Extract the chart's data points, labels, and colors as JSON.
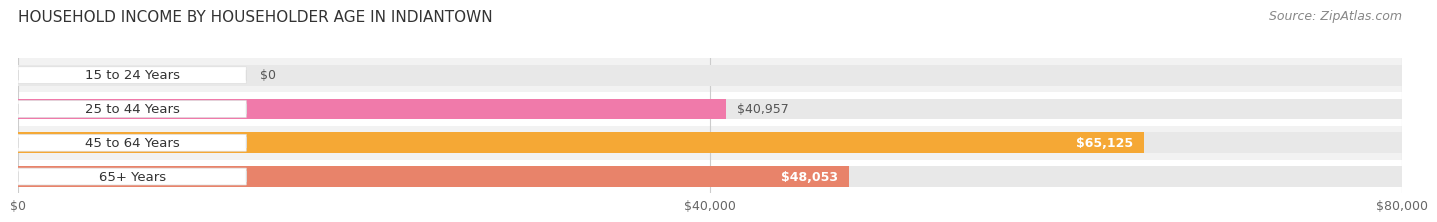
{
  "title": "HOUSEHOLD INCOME BY HOUSEHOLDER AGE IN INDIANTOWN",
  "source": "Source: ZipAtlas.com",
  "categories": [
    "15 to 24 Years",
    "25 to 44 Years",
    "45 to 64 Years",
    "65+ Years"
  ],
  "values": [
    0,
    40957,
    65125,
    48053
  ],
  "bar_colors": [
    "#b0b0e0",
    "#f07aaa",
    "#f5a835",
    "#e8836a"
  ],
  "bar_bg_color": "#e8e8e8",
  "xlim": [
    0,
    80000
  ],
  "xticks": [
    0,
    40000,
    80000
  ],
  "xticklabels": [
    "$0",
    "$40,000",
    "$80,000"
  ],
  "value_labels": [
    "$0",
    "$40,957",
    "$65,125",
    "$48,053"
  ],
  "value_label_inside": [
    false,
    false,
    true,
    true
  ],
  "title_fontsize": 11,
  "source_fontsize": 9,
  "tick_fontsize": 9,
  "bar_label_fontsize": 9,
  "cat_label_fontsize": 9.5,
  "background_color": "#ffffff",
  "bar_height": 0.62,
  "row_bg_colors": [
    "#f2f2f2",
    "#ffffff",
    "#f2f2f2",
    "#ffffff"
  ],
  "pill_bg": "#ffffff",
  "pill_text": "#333333"
}
